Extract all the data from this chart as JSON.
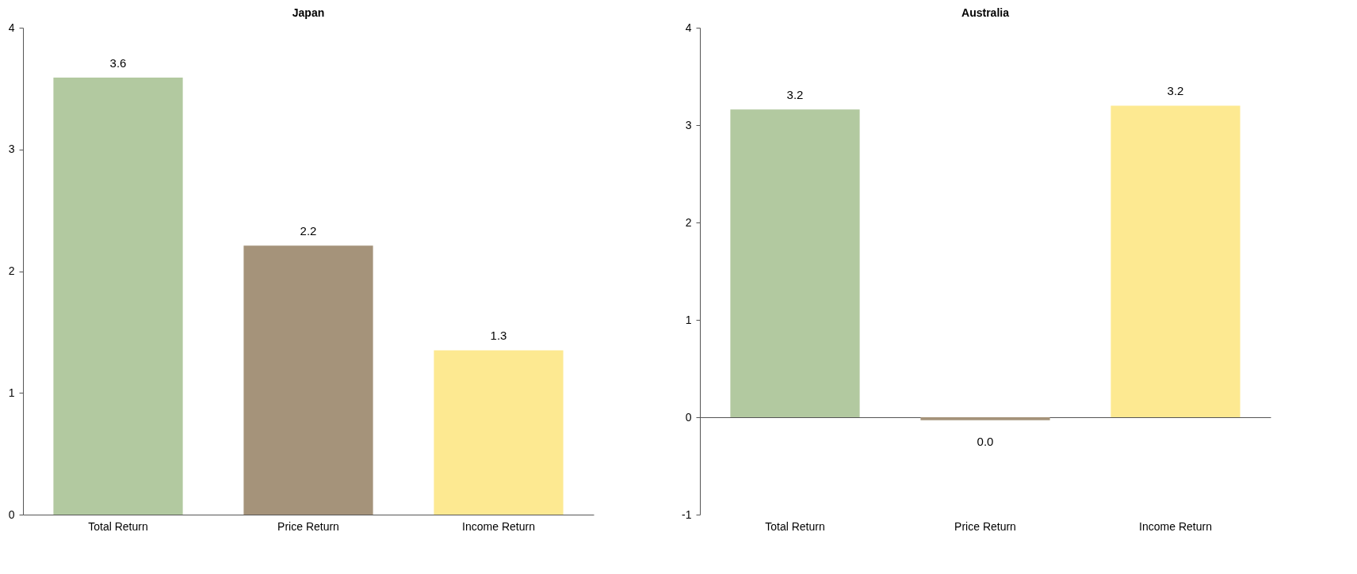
{
  "chart_data": [
    {
      "type": "bar",
      "title": "Japan",
      "categories": [
        "Total Return",
        "Price Return",
        "Income Return"
      ],
      "values": [
        3.59,
        2.21,
        1.35
      ],
      "colors": [
        "#b2c9a0",
        "#a5937a",
        "#fde991"
      ],
      "value_labels": [
        "3.6",
        "2.2",
        "1.3"
      ],
      "ylim": [
        0,
        4
      ],
      "yticks": [
        0,
        1,
        2,
        3,
        4
      ]
    },
    {
      "type": "bar",
      "title": "Australia",
      "categories": [
        "Total Return",
        "Price Return",
        "Income Return"
      ],
      "values": [
        3.16,
        -0.03,
        3.2
      ],
      "colors": [
        "#b2c9a0",
        "#a5937a",
        "#fde991"
      ],
      "value_labels": [
        "3.2",
        "0.0",
        "3.2"
      ],
      "ylim": [
        -1,
        4
      ],
      "yticks": [
        -1,
        0,
        1,
        2,
        3,
        4
      ]
    }
  ]
}
